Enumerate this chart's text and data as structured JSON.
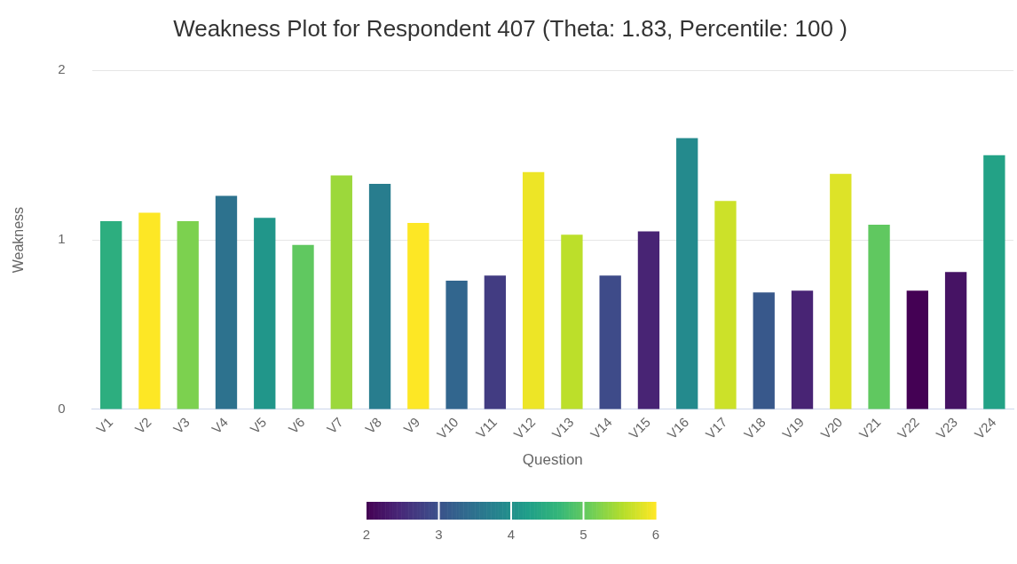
{
  "chart_data": {
    "type": "bar",
    "title": "Weakness Plot for Respondent 407 (Theta: 1.83, Percentile: 100 )",
    "xlabel": "Question",
    "ylabel": "Weakness",
    "categories": [
      "V1",
      "V2",
      "V3",
      "V4",
      "V5",
      "V6",
      "V7",
      "V8",
      "V9",
      "V10",
      "V11",
      "V12",
      "V13",
      "V14",
      "V15",
      "V16",
      "V17",
      "V18",
      "V19",
      "V20",
      "V21",
      "V22",
      "V23",
      "V24"
    ],
    "values": [
      1.11,
      1.16,
      1.11,
      1.26,
      1.13,
      0.97,
      1.38,
      1.33,
      1.1,
      0.76,
      0.79,
      1.4,
      1.03,
      0.79,
      1.05,
      1.6,
      1.23,
      0.69,
      0.7,
      1.39,
      1.09,
      0.7,
      0.81,
      1.5
    ],
    "cvalues": [
      4.5,
      6,
      5.2,
      3.5,
      4.1,
      5.0,
      5.4,
      3.7,
      6,
      3.3,
      2.7,
      5.9,
      5.6,
      2.9,
      2.4,
      3.9,
      5.7,
      3.1,
      2.4,
      5.8,
      5.0,
      2,
      2.2,
      4.3
    ],
    "clim": [
      2,
      6
    ],
    "cticks": [
      2,
      3,
      4,
      5,
      6
    ],
    "ylim": [
      0,
      2
    ],
    "yticks": [
      0,
      1,
      2
    ],
    "grid": "y",
    "legend": false
  }
}
